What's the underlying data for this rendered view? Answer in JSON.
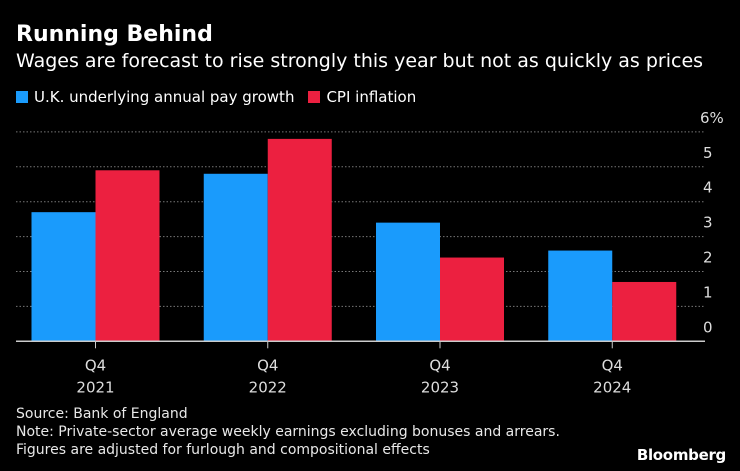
{
  "title": "Running Behind",
  "subtitle": "Wages are forecast to rise strongly this year but not as quickly as prices",
  "source": "Source: Bank of England",
  "note1": "Note: Private-sector average weekly earnings excluding bonuses and arrears.",
  "note2": "Figures are adjusted for furlough and compositional effects",
  "logo": "Bloomberg",
  "chart_data": {
    "type": "bar",
    "categories": [
      [
        "Q4",
        "2021"
      ],
      [
        "Q4",
        "2022"
      ],
      [
        "Q4",
        "2023"
      ],
      [
        "Q4",
        "2024"
      ]
    ],
    "series": [
      {
        "name": "U.K. underlying annual pay growth",
        "color": "#1a9bfc",
        "values": [
          3.7,
          4.8,
          3.4,
          2.6
        ]
      },
      {
        "name": "CPI inflation",
        "color": "#ec2040",
        "values": [
          4.9,
          5.8,
          2.4,
          1.7
        ]
      }
    ],
    "ylim": [
      0,
      6
    ],
    "yticks": [
      "0",
      "1",
      "2",
      "3",
      "4",
      "5",
      "6%"
    ],
    "y_axis_side": "right",
    "grid": true,
    "legend": "top-left"
  }
}
